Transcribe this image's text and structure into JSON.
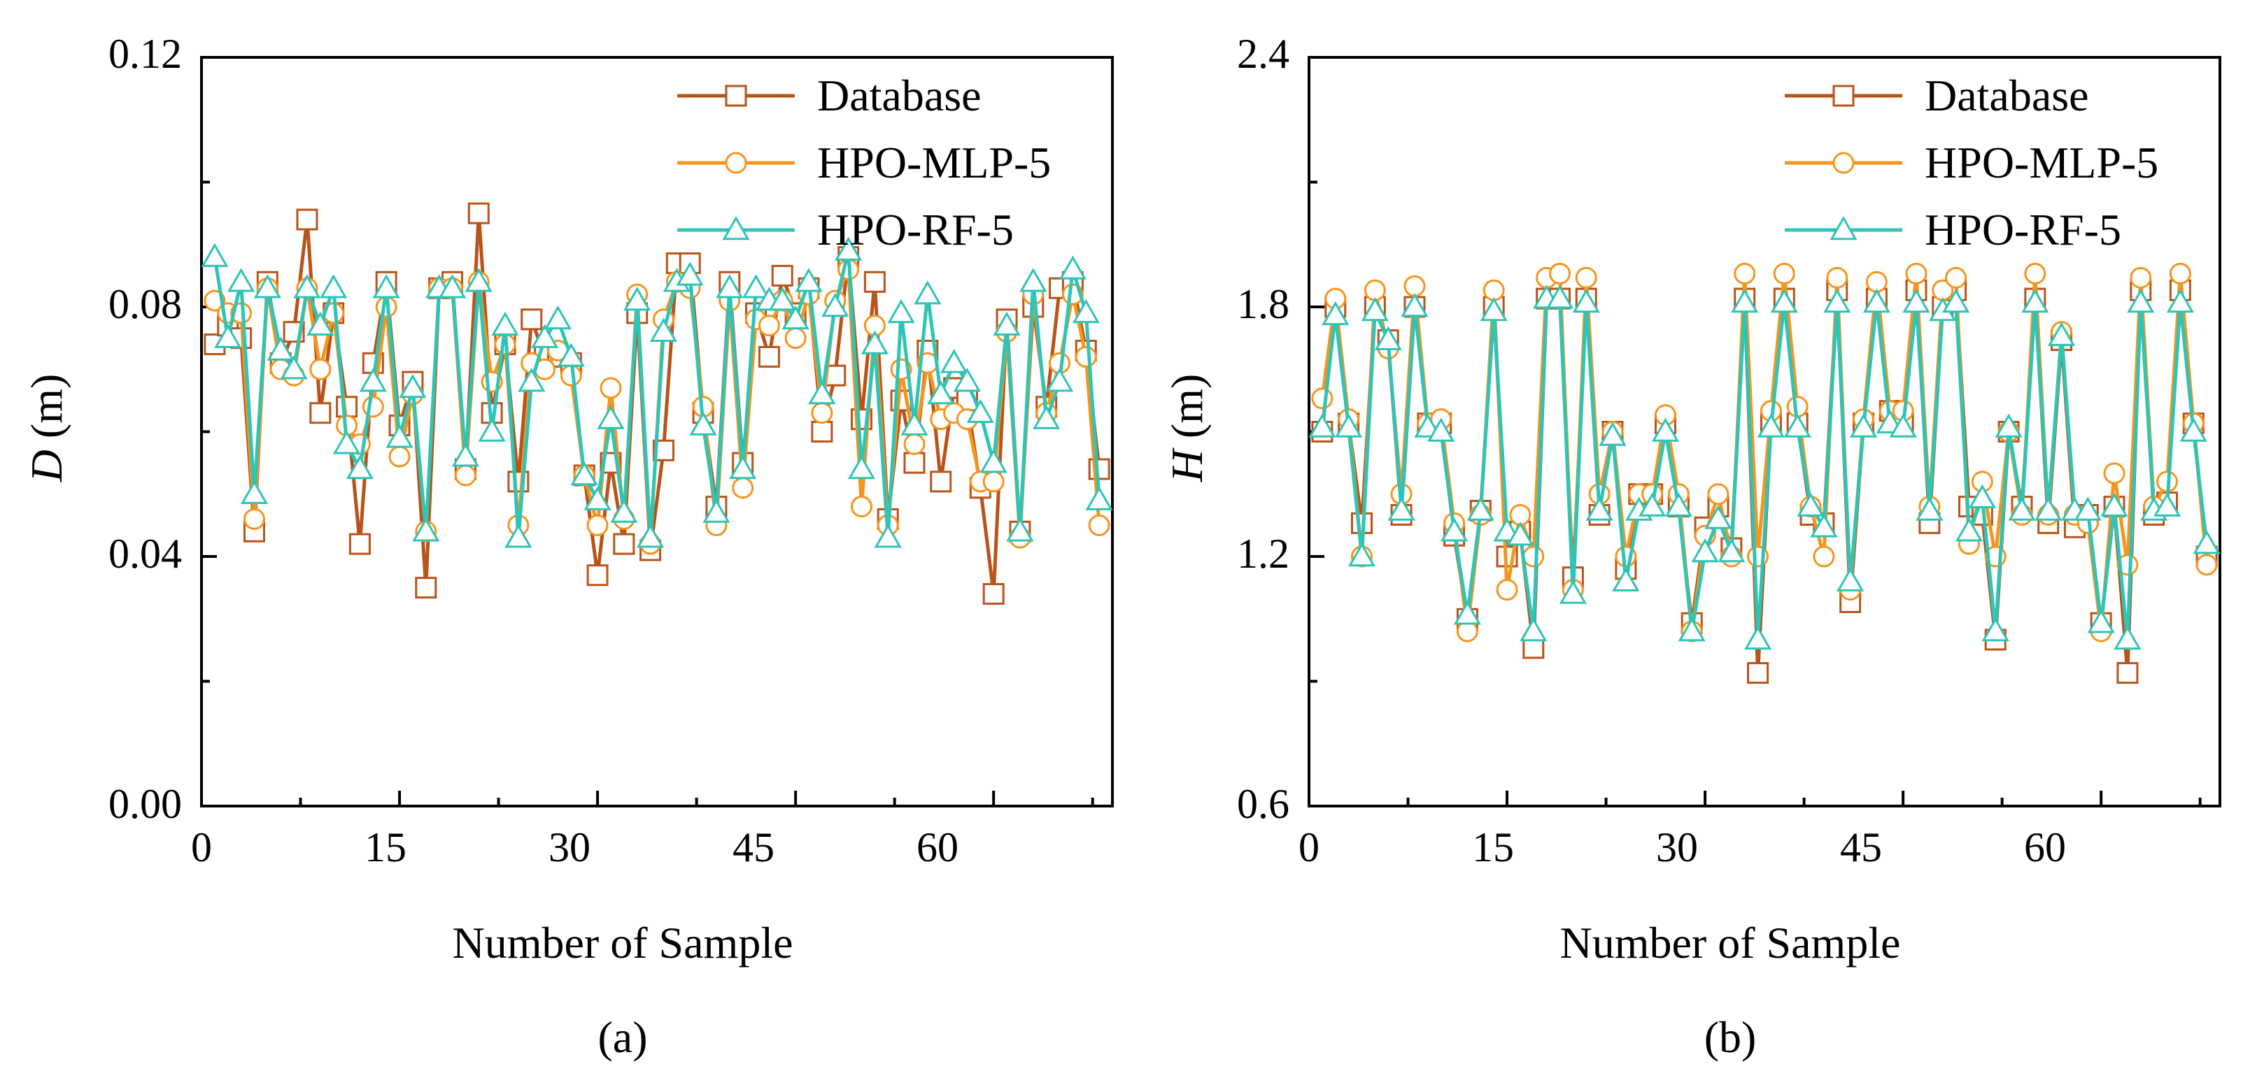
{
  "colors": {
    "database": "#B8541A",
    "mlp": "#F7941D",
    "rf": "#2EC4B6",
    "axis": "#000000"
  },
  "chart_data": [
    {
      "type": "line",
      "panel_label": "(a)",
      "xlabel": "Number of Sample",
      "ylabel_var": "D",
      "ylabel_unit": " (m)",
      "xlim": [
        0,
        69
      ],
      "ylim": [
        0.0,
        0.12
      ],
      "xticks": [
        0,
        15,
        30,
        45,
        60
      ],
      "xtick_labels": [
        "0",
        "15",
        "30",
        "45",
        "60"
      ],
      "yticks": [
        0.0,
        0.04,
        0.08,
        0.12
      ],
      "ytick_labels": [
        "0.00",
        "0.04",
        "0.08",
        "0.12"
      ],
      "legend_position": "top-right",
      "series": [
        {
          "name": "Database",
          "marker": "square",
          "color_key": "database",
          "values": [
            0.074,
            0.077,
            0.075,
            0.044,
            0.084,
            0.071,
            0.076,
            0.094,
            0.063,
            0.079,
            0.064,
            0.042,
            0.071,
            0.084,
            0.061,
            0.068,
            0.035,
            0.083,
            0.084,
            0.054,
            0.095,
            0.063,
            0.074,
            0.052,
            0.078,
            0.072,
            0.072,
            0.071,
            0.053,
            0.037,
            0.055,
            0.042,
            0.079,
            0.041,
            0.057,
            0.087,
            0.087,
            0.063,
            0.048,
            0.084,
            0.055,
            0.079,
            0.072,
            0.085,
            0.079,
            0.083,
            0.06,
            0.069,
            0.088,
            0.062,
            0.084,
            0.046,
            0.065,
            0.055,
            0.073,
            0.052,
            0.067,
            0.065,
            0.051,
            0.034,
            0.078,
            0.044,
            0.08,
            0.064,
            0.083,
            0.084,
            0.073,
            0.054
          ]
        },
        {
          "name": "HPO-MLP-5",
          "marker": "circle",
          "color_key": "mlp",
          "values": [
            0.081,
            0.079,
            0.079,
            0.046,
            0.083,
            0.07,
            0.069,
            0.083,
            0.07,
            0.079,
            0.061,
            0.058,
            0.064,
            0.08,
            0.056,
            0.066,
            0.044,
            0.083,
            0.083,
            0.053,
            0.084,
            0.068,
            0.074,
            0.045,
            0.071,
            0.07,
            0.073,
            0.069,
            0.053,
            0.045,
            0.067,
            0.046,
            0.082,
            0.042,
            0.078,
            0.084,
            0.083,
            0.064,
            0.045,
            0.081,
            0.051,
            0.078,
            0.077,
            0.081,
            0.075,
            0.082,
            0.063,
            0.081,
            0.086,
            0.048,
            0.077,
            0.045,
            0.07,
            0.058,
            0.071,
            0.062,
            0.063,
            0.062,
            0.052,
            0.052,
            0.076,
            0.043,
            0.082,
            0.063,
            0.071,
            0.082,
            0.072,
            0.045
          ]
        },
        {
          "name": "HPO-RF-5",
          "marker": "triangle",
          "color_key": "rf",
          "values": [
            0.088,
            0.075,
            0.084,
            0.05,
            0.083,
            0.073,
            0.07,
            0.083,
            0.077,
            0.083,
            0.058,
            0.054,
            0.068,
            0.083,
            0.059,
            0.067,
            0.044,
            0.083,
            0.083,
            0.056,
            0.084,
            0.06,
            0.077,
            0.043,
            0.068,
            0.075,
            0.078,
            0.072,
            0.053,
            0.049,
            0.062,
            0.047,
            0.081,
            0.043,
            0.076,
            0.084,
            0.085,
            0.061,
            0.047,
            0.083,
            0.054,
            0.083,
            0.081,
            0.081,
            0.078,
            0.084,
            0.066,
            0.08,
            0.089,
            0.054,
            0.074,
            0.043,
            0.079,
            0.061,
            0.082,
            0.066,
            0.071,
            0.068,
            0.063,
            0.055,
            0.077,
            0.044,
            0.084,
            0.062,
            0.068,
            0.086,
            0.079,
            0.049
          ]
        }
      ]
    },
    {
      "type": "line",
      "panel_label": "(b)",
      "xlabel": "Number of Sample",
      "ylabel_var": "H",
      "ylabel_unit": " (m)",
      "xlim": [
        0,
        69
      ],
      "ylim": [
        0.6,
        2.4
      ],
      "xticks": [
        0,
        15,
        30,
        45,
        60
      ],
      "xtick_labels": [
        "0",
        "15",
        "30",
        "45",
        "60"
      ],
      "yticks": [
        0.6,
        1.2,
        1.8,
        2.4
      ],
      "ytick_labels": [
        "0.6",
        "1.2",
        "1.8",
        "2.4"
      ],
      "legend_position": "top-right",
      "series": [
        {
          "name": "Database",
          "marker": "square",
          "color_key": "database",
          "values": [
            1.5,
            1.8,
            1.52,
            1.28,
            1.8,
            1.72,
            1.3,
            1.8,
            1.52,
            1.52,
            1.25,
            1.05,
            1.31,
            1.8,
            1.2,
            1.26,
            0.98,
            1.82,
            1.82,
            1.15,
            1.82,
            1.3,
            1.5,
            1.17,
            1.35,
            1.35,
            1.52,
            1.32,
            1.04,
            1.27,
            1.32,
            1.22,
            1.82,
            0.92,
            1.52,
            1.82,
            1.52,
            1.3,
            1.28,
            1.84,
            1.09,
            1.52,
            1.82,
            1.55,
            1.52,
            1.84,
            1.28,
            1.8,
            1.84,
            1.32,
            1.3,
            1.0,
            1.5,
            1.32,
            1.82,
            1.28,
            1.72,
            1.27,
            1.3,
            1.04,
            1.32,
            0.92,
            1.84,
            1.3,
            1.33,
            1.84,
            1.52,
            1.2
          ]
        },
        {
          "name": "HPO-MLP-5",
          "marker": "circle",
          "color_key": "mlp",
          "values": [
            1.58,
            1.82,
            1.53,
            1.2,
            1.84,
            1.7,
            1.35,
            1.85,
            1.52,
            1.53,
            1.28,
            1.02,
            1.3,
            1.84,
            1.12,
            1.3,
            1.2,
            1.87,
            1.88,
            1.12,
            1.87,
            1.35,
            1.5,
            1.2,
            1.35,
            1.35,
            1.54,
            1.35,
            1.02,
            1.25,
            1.35,
            1.2,
            1.88,
            1.2,
            1.55,
            1.88,
            1.56,
            1.32,
            1.2,
            1.87,
            1.12,
            1.53,
            1.86,
            1.55,
            1.55,
            1.88,
            1.32,
            1.84,
            1.87,
            1.23,
            1.38,
            1.2,
            1.5,
            1.3,
            1.88,
            1.3,
            1.74,
            1.3,
            1.28,
            1.02,
            1.4,
            1.18,
            1.87,
            1.32,
            1.38,
            1.88,
            1.52,
            1.18
          ]
        },
        {
          "name": "HPO-RF-5",
          "marker": "triangle",
          "color_key": "rf",
          "values": [
            1.51,
            1.78,
            1.51,
            1.2,
            1.79,
            1.72,
            1.31,
            1.8,
            1.51,
            1.5,
            1.26,
            1.06,
            1.31,
            1.79,
            1.26,
            1.25,
            1.02,
            1.82,
            1.82,
            1.11,
            1.81,
            1.31,
            1.49,
            1.14,
            1.31,
            1.32,
            1.5,
            1.32,
            1.02,
            1.21,
            1.29,
            1.21,
            1.81,
            1.0,
            1.51,
            1.81,
            1.51,
            1.32,
            1.27,
            1.81,
            1.14,
            1.51,
            1.81,
            1.52,
            1.51,
            1.81,
            1.31,
            1.79,
            1.81,
            1.26,
            1.34,
            1.02,
            1.51,
            1.31,
            1.81,
            1.31,
            1.73,
            1.31,
            1.31,
            1.04,
            1.32,
            1.0,
            1.81,
            1.31,
            1.32,
            1.81,
            1.5,
            1.23
          ]
        }
      ]
    }
  ]
}
